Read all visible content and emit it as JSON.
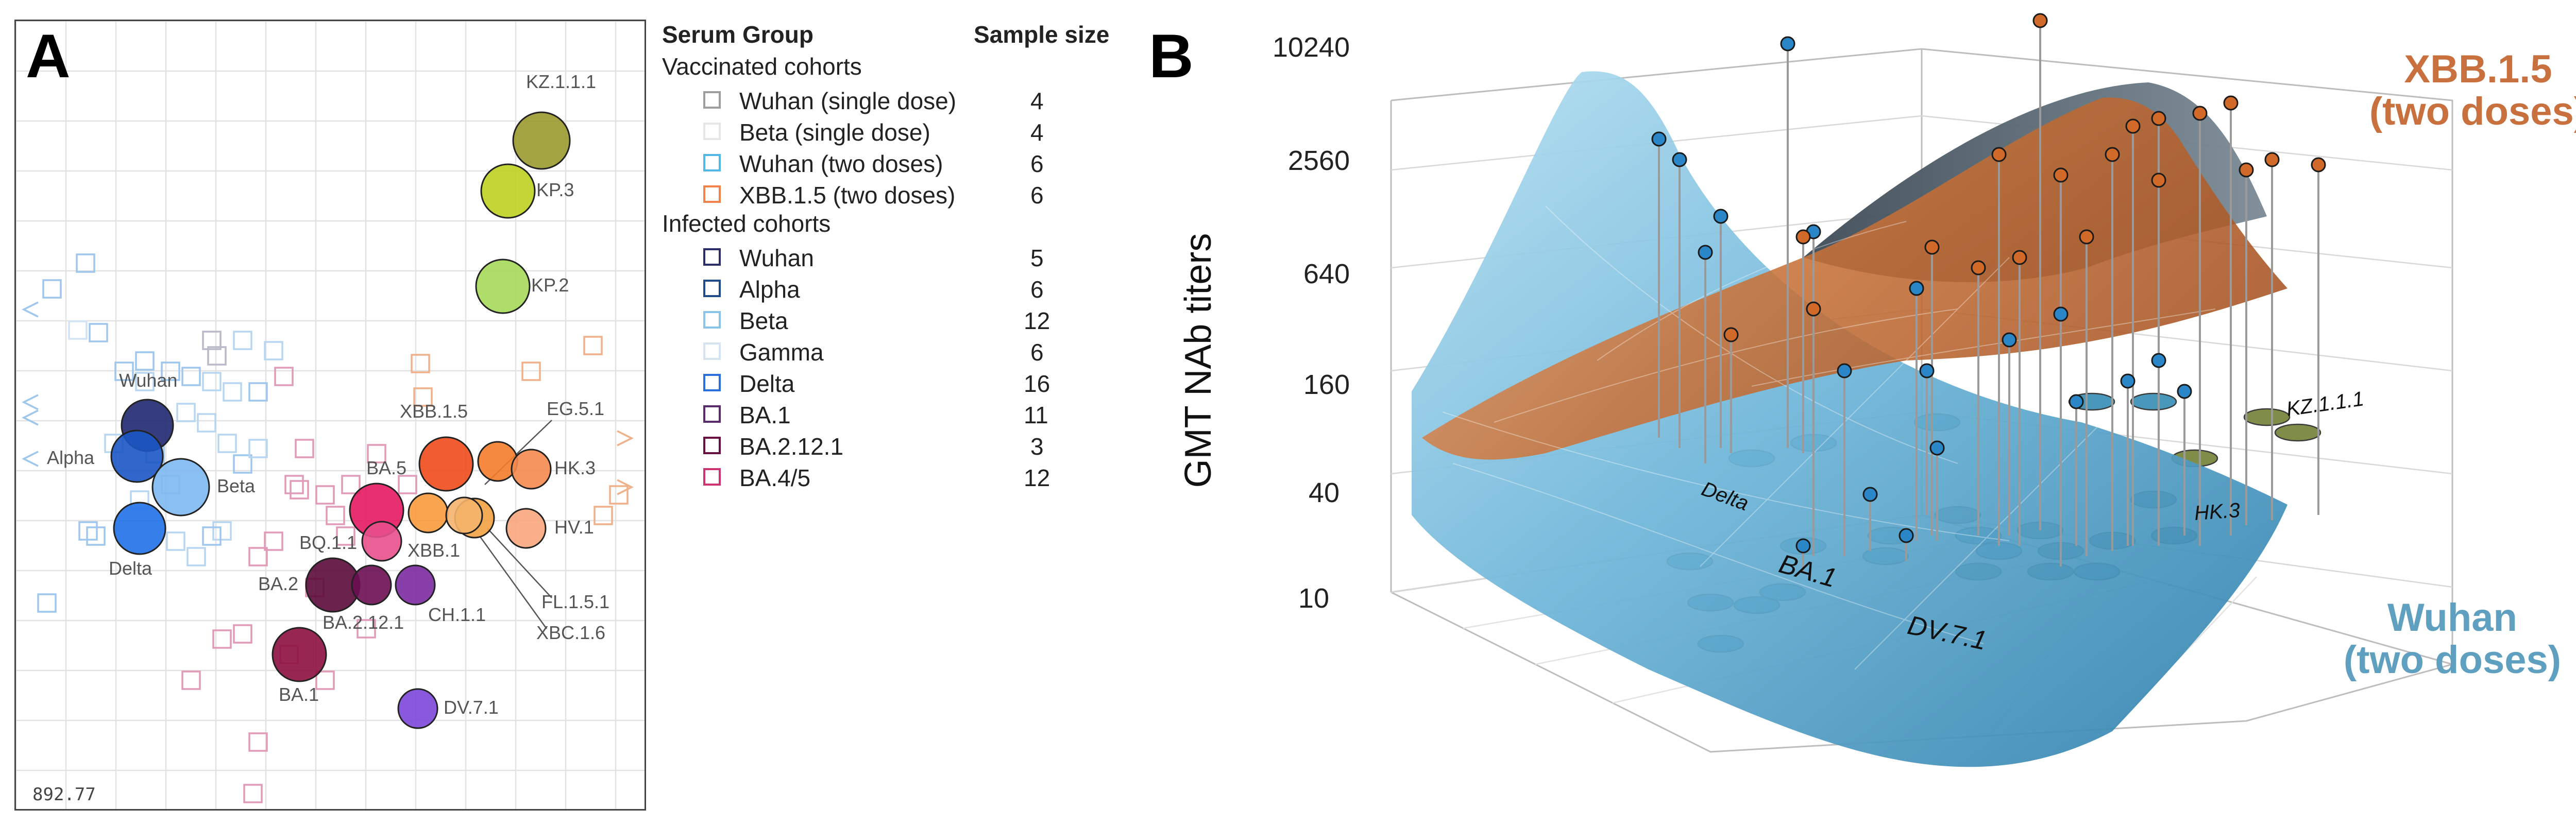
{
  "panelA": {
    "letter": "A",
    "stress_value": "892.77",
    "antigens": [
      {
        "name": "KZ.1.1.1",
        "color": "#9a9a2e"
      },
      {
        "name": "KP.3",
        "color": "#bcd21f"
      },
      {
        "name": "KP.2",
        "color": "#a6d95a"
      },
      {
        "name": "Wuhan",
        "color": "#1f2870"
      },
      {
        "name": "Alpha",
        "color": "#1b55c4"
      },
      {
        "name": "Beta",
        "color": "#7db8ef"
      },
      {
        "name": "Delta",
        "color": "#2071e8"
      },
      {
        "name": "XBB.1.5",
        "color": "#f04b1a"
      },
      {
        "name": "EG.5.1",
        "color": "#f47c2a"
      },
      {
        "name": "HK.3",
        "color": "#f58a4e"
      },
      {
        "name": "BA.5",
        "color": "#e51961"
      },
      {
        "name": "XBB.1",
        "color": "#f89a3b"
      },
      {
        "name": "HV.1",
        "color": "#f8a67c"
      },
      {
        "name": "BQ.1.1",
        "color": "#e8508c"
      },
      {
        "name": "BA.2",
        "color": "#5b0a38"
      },
      {
        "name": "BA.2.12.1",
        "color": "#6a0e52"
      },
      {
        "name": "CH.1.1",
        "color": "#7b2aa0"
      },
      {
        "name": "FL.1.5.1",
        "color": "#f3a243"
      },
      {
        "name": "XBC.1.6",
        "color": "#f5b36b"
      },
      {
        "name": "BA.1",
        "color": "#8c0f3f"
      },
      {
        "name": "DV.7.1",
        "color": "#7b47d8"
      }
    ]
  },
  "legend": {
    "header_group": "Serum Group",
    "header_size": "Sample size",
    "sections": [
      {
        "title": "Vaccinated cohorts",
        "items": [
          {
            "label": "Wuhan (single dose)",
            "size": "4",
            "color": "#9e9e9e"
          },
          {
            "label": "Beta (single dose)",
            "size": "4",
            "color": "#e6e6e6"
          },
          {
            "label": "Wuhan (two doses)",
            "size": "6",
            "color": "#52b8e6"
          },
          {
            "label": "XBB.1.5 (two doses)",
            "size": "6",
            "color": "#f0824a"
          }
        ]
      },
      {
        "title": "Infected cohorts",
        "items": [
          {
            "label": "Wuhan",
            "size": "5",
            "color": "#2d2d6a"
          },
          {
            "label": "Alpha",
            "size": "6",
            "color": "#1f4a8c"
          },
          {
            "label": "Beta",
            "size": "12",
            "color": "#8ac4e8"
          },
          {
            "label": "Gamma",
            "size": "6",
            "color": "#d6e4f2"
          },
          {
            "label": "Delta",
            "size": "16",
            "color": "#2a6fdb"
          },
          {
            "label": "BA.1",
            "size": "11",
            "color": "#5a2a6a"
          },
          {
            "label": "BA.2.12.1",
            "size": "3",
            "color": "#6a1040"
          },
          {
            "label": "BA.4/5",
            "size": "12",
            "color": "#cf3472"
          }
        ]
      }
    ]
  },
  "panelB": {
    "letter": "B",
    "axis_title": "GMT NAb titers",
    "z_ticks": [
      "10240",
      "2560",
      "640",
      "160",
      "40",
      "10"
    ],
    "surface_labels": [
      {
        "text": "XBB.1.5",
        "text2": "(two doses)",
        "color": "#c8703e"
      },
      {
        "text": "Wuhan",
        "text2": "(two doses)",
        "color": "#5f9fbf"
      }
    ],
    "floor_labels": [
      "KZ.1.1.1",
      "HK.3",
      "Delta",
      "BA.1",
      "DV.7.1"
    ]
  }
}
